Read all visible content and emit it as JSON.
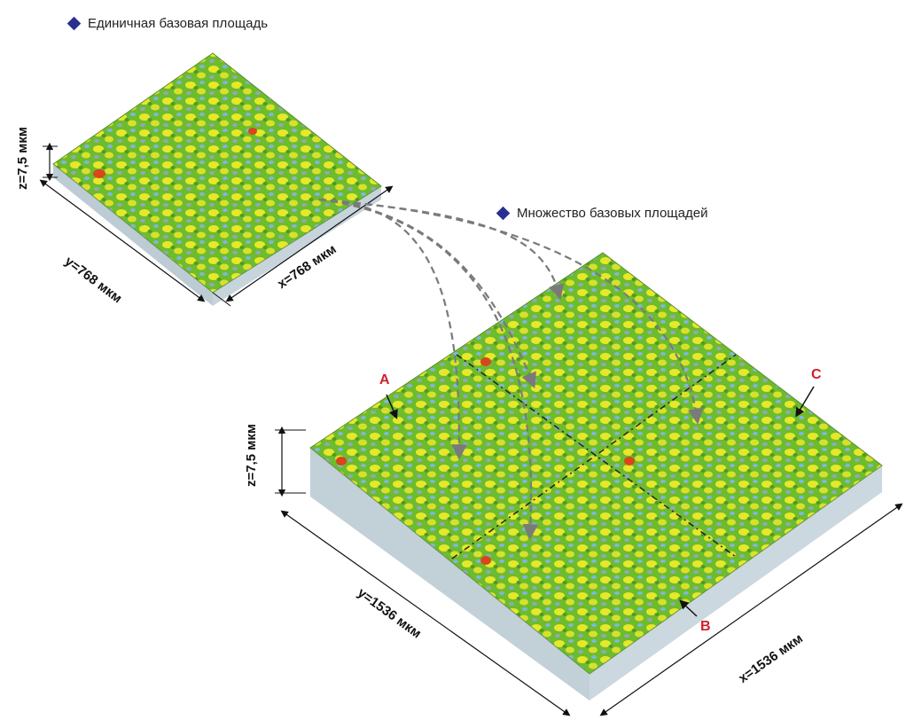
{
  "legend": {
    "single": "Единичная базовая площадь",
    "multiple": "Множество базовых площадей"
  },
  "small_surface": {
    "z_label": "z=7,5 мкм",
    "y_label": "y=768 мкм",
    "x_label": "x=768 мкм"
  },
  "large_surface": {
    "z_label": "z=7,5 мкм",
    "y_label": "y=1536 мкм",
    "x_label": "x=1536 мкм"
  },
  "markers": {
    "a": "A",
    "b": "B",
    "c": "C"
  },
  "colors": {
    "legend_diamond": "#2b2f8f",
    "surface_green": "#6dbb2e",
    "surface_yellow": "#e6e82a",
    "surface_blue": "#7fb7d8",
    "peak_red": "#d8461c",
    "arrow_gray": "#7a7a7a",
    "marker_red": "#d0202a"
  }
}
